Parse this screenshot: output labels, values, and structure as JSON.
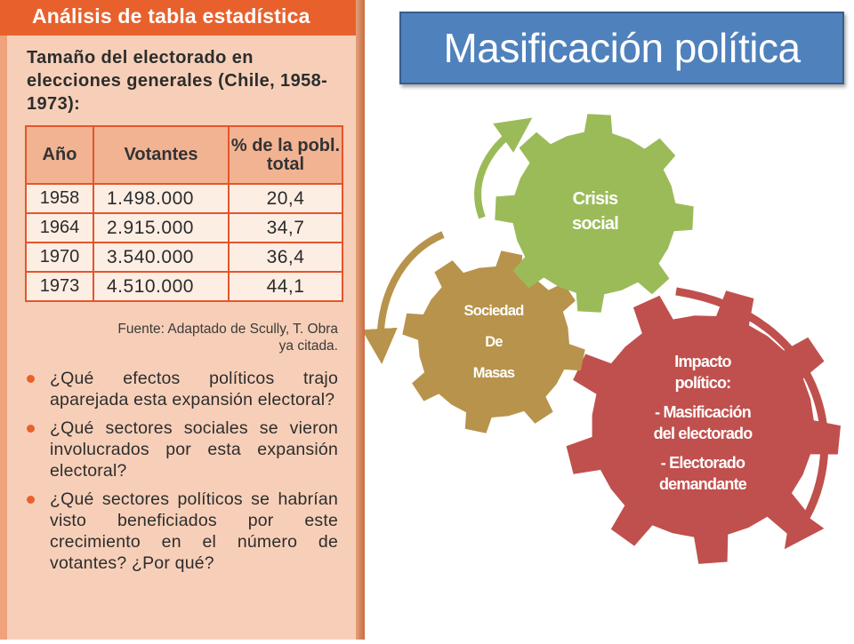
{
  "left_panel": {
    "header": "Análisis de tabla estadística",
    "subtitle": "Tamaño del electorado en elecciones generales (Chile, 1958-1973):",
    "table": {
      "headers": [
        "Año",
        "Votantes",
        "% de la pobl. total"
      ],
      "rows": [
        [
          "1958",
          "1.498.000",
          "20,4"
        ],
        [
          "1964",
          "2.915.000",
          "34,7"
        ],
        [
          "1970",
          "3.540.000",
          "36,4"
        ],
        [
          "1973",
          "4.510.000",
          "44,1"
        ]
      ]
    },
    "source": "Fuente: Adaptado de Scully, T. Obra ya citada.",
    "questions": [
      "¿Qué efectos políticos trajo aparejada esta expansión electoral?",
      "¿Qué sectores sociales se vieron involucrados por esta expansión electoral?",
      "¿Qué sectores políticos se habrían visto beneficiados por este crecimiento en el número de votantes? ¿Por qué?"
    ]
  },
  "slide": {
    "title": "Masificación política",
    "gears": {
      "impact": {
        "line1": "Impacto",
        "line2": "político:",
        "line3": "- Masificación",
        "line4": "del electorado",
        "line5": "- Electorado",
        "line6": "demandante"
      },
      "sociedad": {
        "line1": "Sociedad",
        "line2": "De",
        "line3": "Masas"
      },
      "crisis": {
        "line1": "Crisis",
        "line2": "social"
      }
    }
  },
  "colors": {
    "panel_bg": "#f7cfb8",
    "panel_header": "#e8612d",
    "table_border": "#e6542b",
    "title_box": "#4f81bd",
    "gear_red": "#c0504d",
    "gear_gold": "#b8934c",
    "gear_green": "#9bbb59"
  }
}
